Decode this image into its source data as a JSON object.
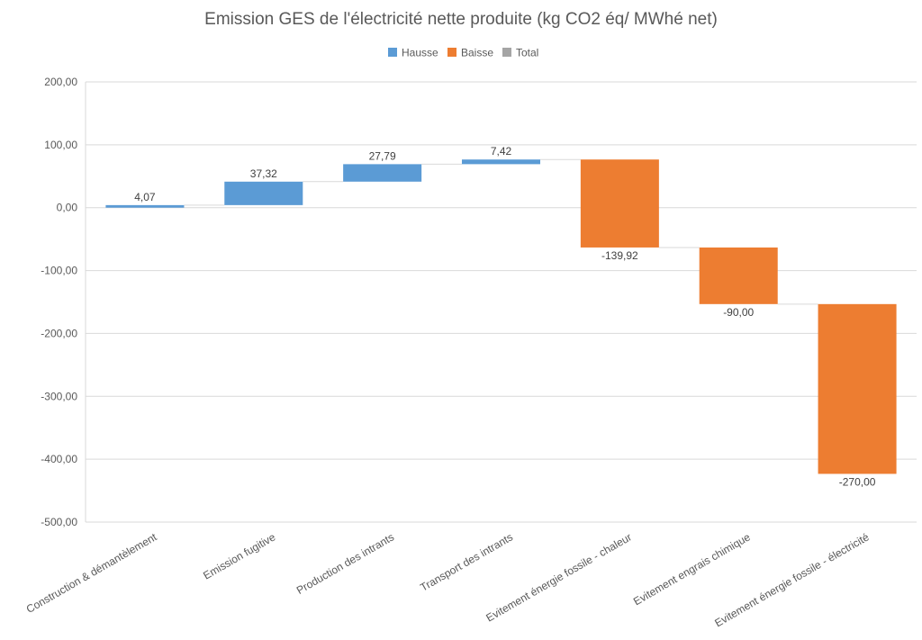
{
  "chart_data": {
    "type": "bar",
    "subtype": "waterfall",
    "title": "Emission GES de l'électricité nette produite (kg CO2 éq/ MWhé net)",
    "xlabel": "",
    "ylabel": "",
    "ylim": [
      -500,
      200
    ],
    "yticks": [
      200,
      100,
      0,
      -100,
      -200,
      -300,
      -400,
      -500
    ],
    "ytick_labels": [
      "200,00",
      "100,00",
      "0,00",
      "-100,00",
      "-200,00",
      "-300,00",
      "-400,00",
      "-500,00"
    ],
    "grid": true,
    "legend_position": "top",
    "legend": [
      {
        "name": "Hausse",
        "color": "#5b9bd5"
      },
      {
        "name": "Baisse",
        "color": "#ed7d31"
      },
      {
        "name": "Total",
        "color": "#a5a5a5"
      }
    ],
    "categories": [
      "Construction & démantèlement",
      "Emission fugitive",
      "Production des intrants",
      "Transport des intrants",
      "Evitement énergie fossile - chaleur",
      "Evitement engrais chimique",
      "Evitement énergie fossile - électricité"
    ],
    "values": [
      4.07,
      37.32,
      27.79,
      7.42,
      -139.92,
      -90.0,
      -270.0
    ],
    "value_labels": [
      "4,07",
      "37,32",
      "27,79",
      "7,42",
      "-139,92",
      "-90,00",
      "-270,00"
    ],
    "colors": {
      "increase": "#5b9bd5",
      "decrease": "#ed7d31",
      "total": "#a5a5a5"
    }
  }
}
